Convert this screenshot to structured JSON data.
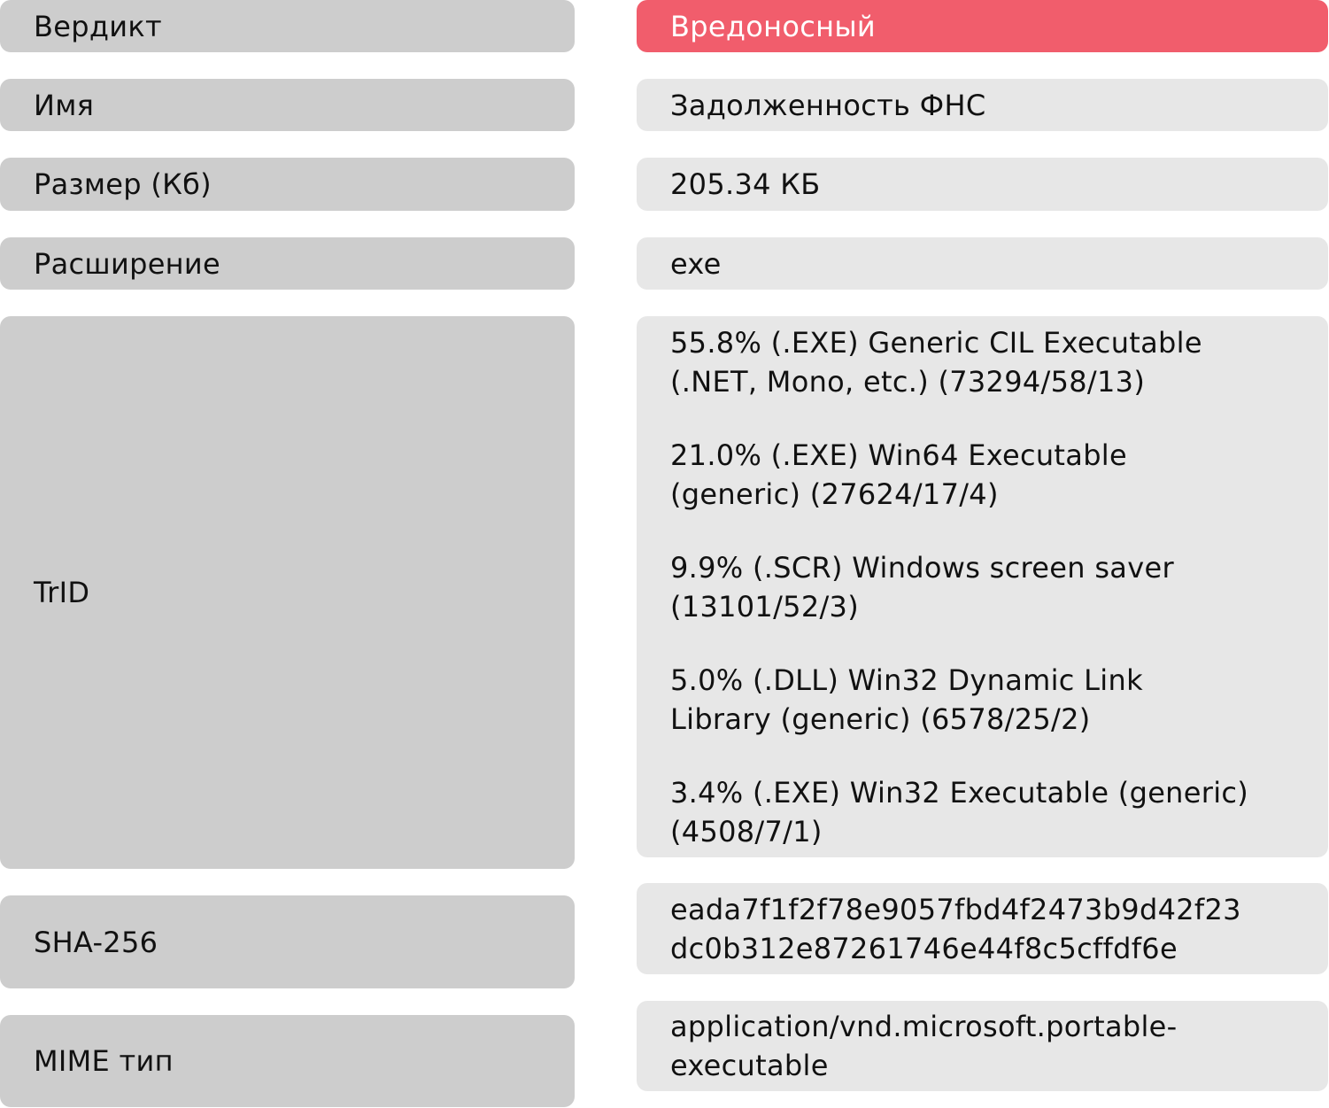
{
  "colors": {
    "label_bg": "#cdcdcd",
    "value_bg": "#e7e7e7",
    "verdict_bg": "#f15d6c"
  },
  "rows": [
    {
      "label": "Вердикт",
      "value": [
        "Вредоносный"
      ]
    },
    {
      "label": "Имя",
      "value": [
        "Задолженность ФНС"
      ]
    },
    {
      "label": "Размер (Кб)",
      "value": [
        "205.34 КБ"
      ]
    },
    {
      "label": "Расширение",
      "value": [
        "exe"
      ]
    },
    {
      "label": "TrID",
      "entries": [
        [
          "55.8% (.EXE) Generic CIL Executable",
          "(.NET, Mono, etc.) (73294/58/13)"
        ],
        [
          "21.0% (.EXE) Win64 Executable",
          "(generic) (27624/17/4)"
        ],
        [
          "9.9% (.SCR) Windows screen saver",
          "(13101/52/3)"
        ],
        [
          "5.0% (.DLL) Win32 Dynamic Link",
          "Library (generic) (6578/25/2)"
        ],
        [
          "3.4% (.EXE) Win32 Executable (generic)",
          "(4508/7/1)"
        ]
      ]
    },
    {
      "label": "SHA-256",
      "value": [
        "eada7f1f2f78e9057fbd4f2473b9d42f23",
        "dc0b312e87261746e44f8c5cffdf6e"
      ]
    },
    {
      "label": "MIME тип",
      "value": [
        "application/vnd.microsoft.portable-",
        "executable"
      ]
    }
  ]
}
